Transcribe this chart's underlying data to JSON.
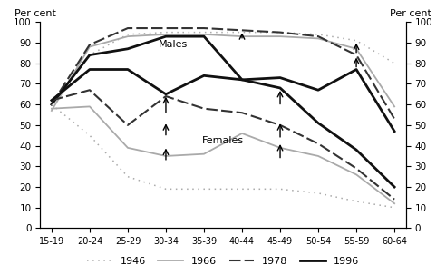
{
  "age_groups": [
    "15-19",
    "20-24",
    "25-29",
    "30-34",
    "35-39",
    "40-44",
    "45-49",
    "50-54",
    "55-59",
    "60-64"
  ],
  "x": [
    0,
    1,
    2,
    3,
    4,
    5,
    6,
    7,
    8,
    9
  ],
  "males_1946": [
    60,
    84,
    94,
    95,
    95,
    95,
    95,
    94,
    91,
    80
  ],
  "males_1966": [
    57,
    88,
    93,
    94,
    94,
    93,
    93,
    92,
    87,
    59
  ],
  "males_1978": [
    60,
    89,
    97,
    97,
    97,
    96,
    95,
    93,
    84,
    53
  ],
  "males_1996": [
    60,
    84,
    87,
    93,
    93,
    72,
    73,
    67,
    77,
    47
  ],
  "females_1946": [
    60,
    45,
    25,
    19,
    19,
    19,
    19,
    17,
    13,
    10
  ],
  "females_1966": [
    58,
    59,
    39,
    35,
    36,
    46,
    39,
    35,
    26,
    12
  ],
  "females_1978": [
    62,
    67,
    50,
    64,
    58,
    56,
    50,
    41,
    29,
    14
  ],
  "females_1996": [
    62,
    77,
    77,
    65,
    74,
    72,
    68,
    51,
    38,
    20
  ],
  "ylim": [
    0,
    100
  ],
  "yticks": [
    0,
    10,
    20,
    30,
    40,
    50,
    60,
    70,
    80,
    90,
    100
  ],
  "color_1946": "#aaaaaa",
  "color_1966": "#aaaaaa",
  "color_1978": "#333333",
  "color_1996": "#111111",
  "ylabel_left": "Per cent",
  "ylabel_right": "Per cent",
  "annotation_males": "Males",
  "annotation_females": "Females"
}
